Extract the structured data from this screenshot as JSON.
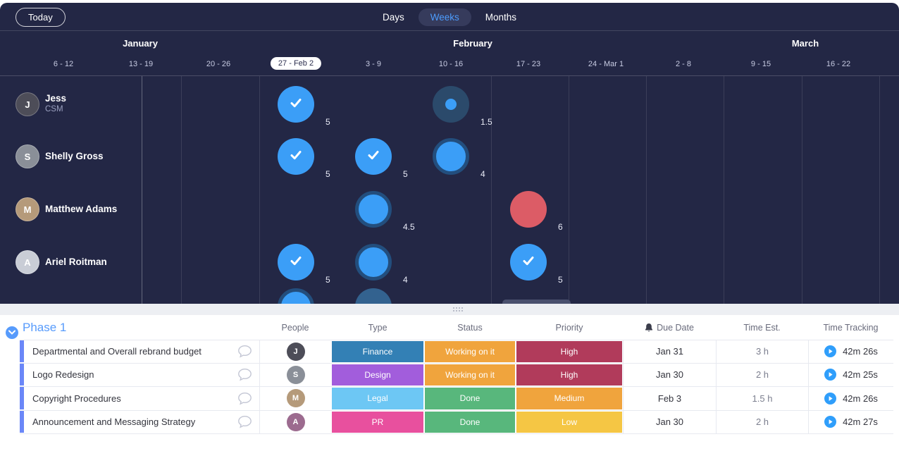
{
  "toolbar": {
    "today_label": "Today",
    "views": [
      {
        "label": "Days",
        "active": false
      },
      {
        "label": "Weeks",
        "active": true
      },
      {
        "label": "Months",
        "active": false
      }
    ]
  },
  "timeline": {
    "months": [
      "January",
      "February",
      "March"
    ],
    "weeks": [
      {
        "label": "6 - 12",
        "selected": false
      },
      {
        "label": "13 - 19",
        "selected": false
      },
      {
        "label": "20 - 26",
        "selected": false
      },
      {
        "label": "27 - Feb 2",
        "selected": true
      },
      {
        "label": "3 - 9",
        "selected": false
      },
      {
        "label": "10 - 16",
        "selected": false
      },
      {
        "label": "17 - 23",
        "selected": false
      },
      {
        "label": "24 - Mar 1",
        "selected": false
      },
      {
        "label": "2 - 8",
        "selected": false
      },
      {
        "label": "9 - 15",
        "selected": false
      },
      {
        "label": "16 - 22",
        "selected": false
      }
    ],
    "bubble_colors": {
      "done_blue": "#3b9ef7",
      "ring_dark": "#234e7d",
      "under_dark": "#2b4a6b",
      "overload_red": "#dc5c66"
    },
    "people": [
      {
        "name": "Jess",
        "role": "CSM",
        "initial": "J",
        "avatar_color": "#4d4d58",
        "bubbles": [
          {
            "week": 3,
            "kind": "check",
            "value": "5"
          },
          {
            "week": 5,
            "kind": "dot",
            "value": "1.5"
          }
        ]
      },
      {
        "name": "Shelly Gross",
        "role": "",
        "initial": "S",
        "avatar_color": "#8a8f98",
        "bubbles": [
          {
            "week": 3,
            "kind": "check",
            "value": "5"
          },
          {
            "week": 4,
            "kind": "check",
            "value": "5"
          },
          {
            "week": 5,
            "kind": "ring",
            "value": "4"
          }
        ]
      },
      {
        "name": "Matthew Adams",
        "role": "",
        "initial": "M",
        "avatar_color": "#b59a7a",
        "bubbles": [
          {
            "week": 4,
            "kind": "ring",
            "value": "4.5"
          },
          {
            "week": 6,
            "kind": "red",
            "value": "6"
          }
        ]
      },
      {
        "name": "Ariel Roitman",
        "role": "",
        "initial": "A",
        "avatar_color": "#c9cdd6",
        "bubbles": [
          {
            "week": 3,
            "kind": "check",
            "value": "5"
          },
          {
            "week": 4,
            "kind": "ring",
            "value": "4"
          },
          {
            "week": 6,
            "kind": "check",
            "value": "5"
          }
        ]
      }
    ],
    "partial_row": {
      "avatar_color": "#b8918c",
      "bubbles": [
        {
          "week": 3,
          "kind": "ring"
        },
        {
          "week": 4,
          "kind": "dim"
        }
      ]
    }
  },
  "table": {
    "group_title": "Phase 1",
    "group_color": "#579bfc",
    "row_bar_color": "#6b87f8",
    "headers": [
      {
        "id": "people",
        "label": "People"
      },
      {
        "id": "type",
        "label": "Type"
      },
      {
        "id": "status",
        "label": "Status"
      },
      {
        "id": "priority",
        "label": "Priority",
        "bell": false
      },
      {
        "id": "due",
        "label": "Due Date",
        "bell": true
      },
      {
        "id": "est",
        "label": "Time Est."
      },
      {
        "id": "tracking",
        "label": "Time Tracking"
      }
    ],
    "rows": [
      {
        "task": "Departmental and Overall rebrand budget",
        "avatar_initial": "J",
        "avatar_color": "#4d4d58",
        "type": {
          "label": "Finance",
          "color": "#3380b5"
        },
        "status": {
          "label": "Working on it",
          "color": "#f0a43d"
        },
        "priority": {
          "label": "High",
          "color": "#b13b5b"
        },
        "due": "Jan 31",
        "est": "3 h",
        "tracking": "42m 26s"
      },
      {
        "task": "Logo Redesign",
        "avatar_initial": "S",
        "avatar_color": "#8a8f98",
        "type": {
          "label": "Design",
          "color": "#a25ddc"
        },
        "status": {
          "label": "Working on it",
          "color": "#f0a43d"
        },
        "priority": {
          "label": "High",
          "color": "#b13b5b"
        },
        "due": "Jan 30",
        "est": "2 h",
        "tracking": "42m 25s"
      },
      {
        "task": "Copyright Procedures",
        "avatar_initial": "M",
        "avatar_color": "#b59a7a",
        "type": {
          "label": "Legal",
          "color": "#6dc7f4"
        },
        "status": {
          "label": "Done",
          "color": "#58b77c"
        },
        "priority": {
          "label": "Medium",
          "color": "#f0a43d"
        },
        "due": "Feb 3",
        "est": "1.5 h",
        "tracking": "42m 26s"
      },
      {
        "task": "Announcement and Messaging Strategy",
        "avatar_initial": "A",
        "avatar_color": "#9c6b8f",
        "type": {
          "label": "PR",
          "color": "#e8509e"
        },
        "status": {
          "label": "Done",
          "color": "#58b77c"
        },
        "priority": {
          "label": "Low",
          "color": "#f5c644"
        },
        "due": "Jan 30",
        "est": "2 h",
        "tracking": "42m 27s"
      }
    ]
  }
}
